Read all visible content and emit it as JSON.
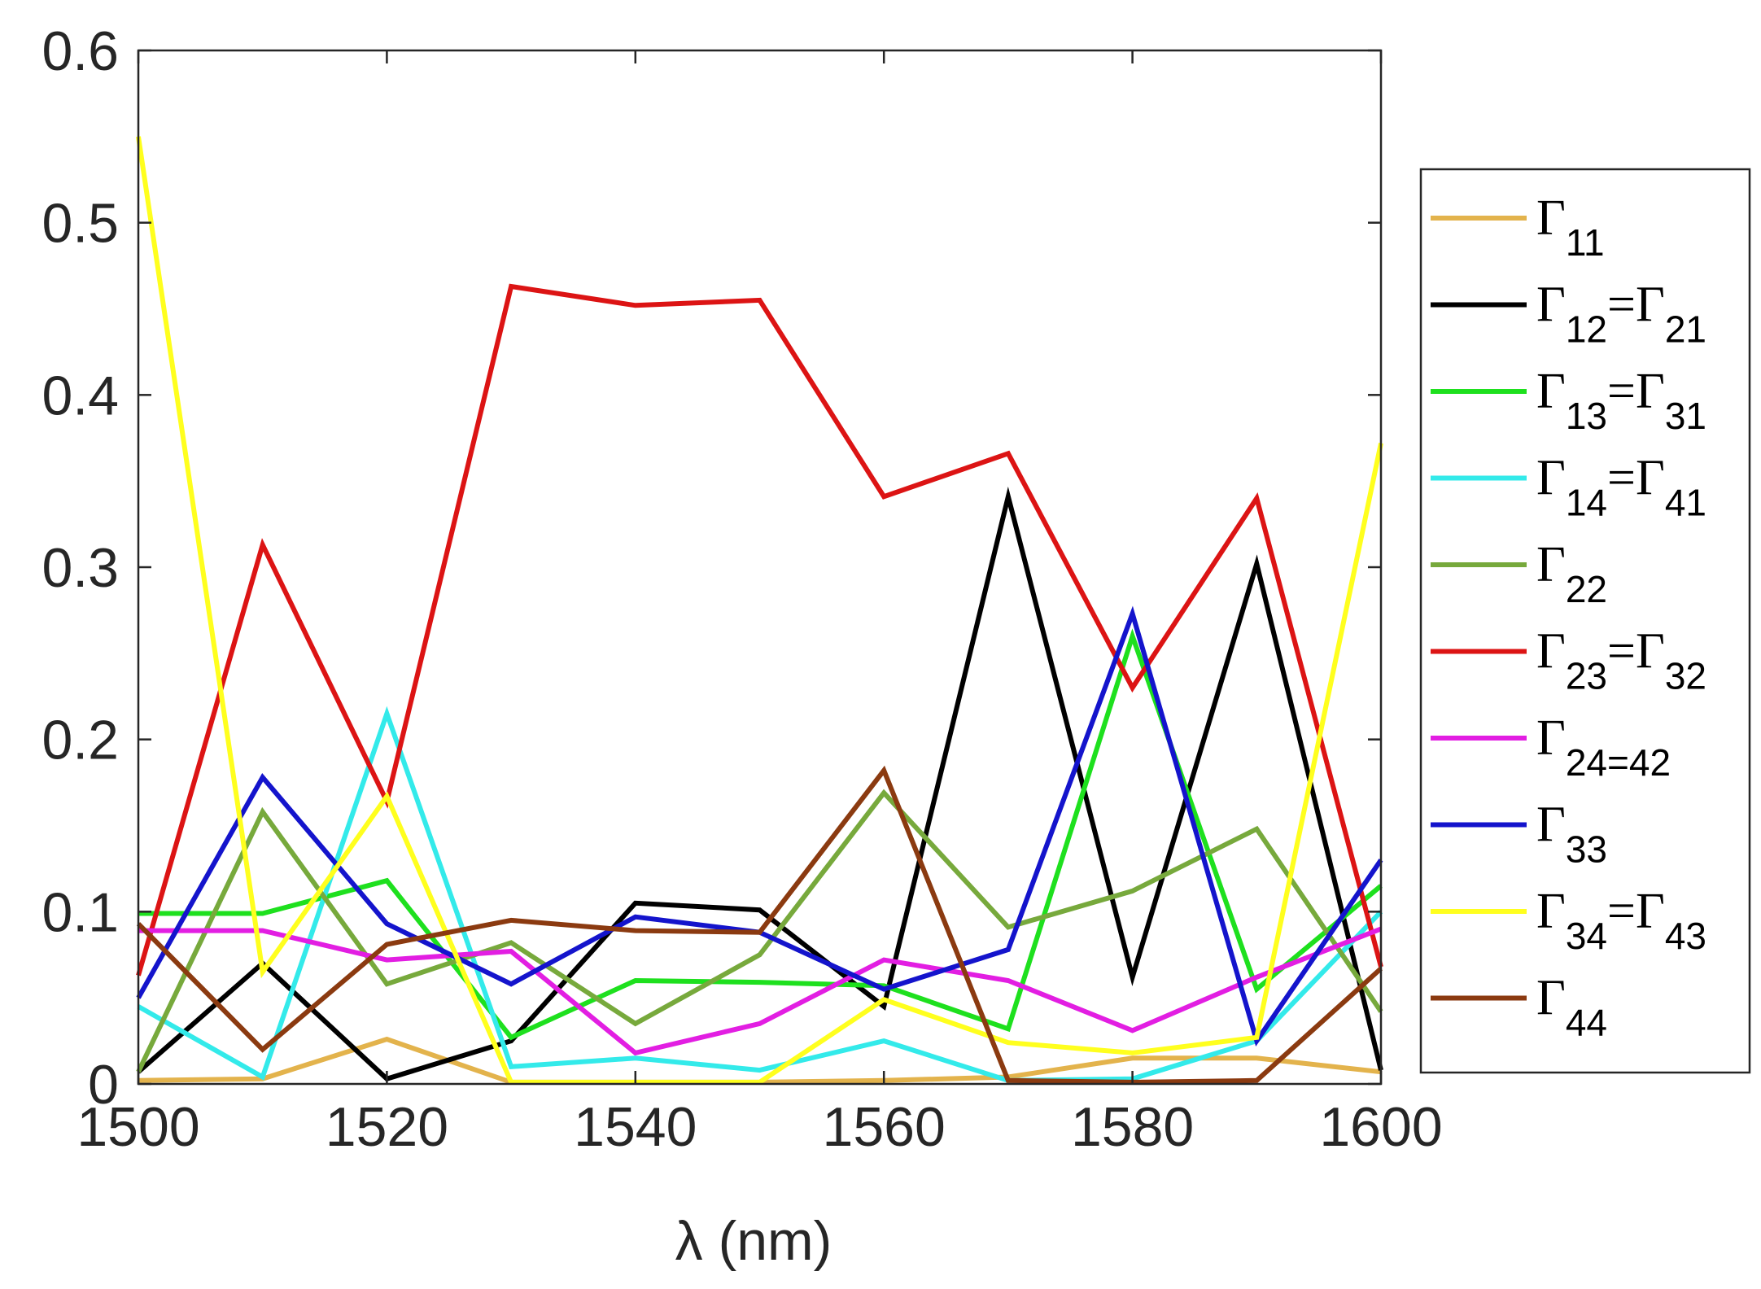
{
  "chart_data": {
    "type": "line",
    "title": "",
    "xlabel": "λ (nm)",
    "ylabel": "",
    "xlim": [
      1500,
      1600
    ],
    "ylim": [
      0,
      0.6
    ],
    "grid": false,
    "legend_position": "outside-right",
    "x": [
      1500,
      1510,
      1520,
      1530,
      1540,
      1550,
      1560,
      1570,
      1580,
      1590,
      1600
    ],
    "x_ticks": [
      1500,
      1520,
      1540,
      1560,
      1580,
      1600
    ],
    "x_tick_labels": [
      "1500",
      "1520",
      "1540",
      "1560",
      "1580",
      "1600"
    ],
    "y_ticks": [
      0,
      0.1,
      0.2,
      0.3,
      0.4,
      0.5,
      0.6
    ],
    "y_tick_labels": [
      "0",
      "0.1",
      "0.2",
      "0.3",
      "0.4",
      "0.5",
      "0.6"
    ],
    "series": [
      {
        "name": "Γ11",
        "legend": [
          {
            "t": "Γ"
          },
          {
            "t": "11",
            "sub": true
          }
        ],
        "color": "#e3b34c",
        "values": [
          0.002,
          0.003,
          0.026,
          0.001,
          0.001,
          0.001,
          0.002,
          0.004,
          0.015,
          0.015,
          0.007
        ]
      },
      {
        "name": "Γ12=Γ21",
        "legend": [
          {
            "t": "Γ"
          },
          {
            "t": "12",
            "sub": true
          },
          {
            "t": "=Γ"
          },
          {
            "t": "21",
            "sub": true
          }
        ],
        "color": "#000000",
        "values": [
          0.007,
          0.07,
          0.003,
          0.025,
          0.105,
          0.101,
          0.045,
          0.341,
          0.062,
          0.302,
          0.008
        ]
      },
      {
        "name": "Γ13=Γ31",
        "legend": [
          {
            "t": "Γ"
          },
          {
            "t": "13",
            "sub": true
          },
          {
            "t": "=Γ"
          },
          {
            "t": "31",
            "sub": true
          }
        ],
        "color": "#1ee01e",
        "values": [
          0.099,
          0.099,
          0.118,
          0.027,
          0.06,
          0.059,
          0.057,
          0.032,
          0.26,
          0.055,
          0.115
        ]
      },
      {
        "name": "Γ14=Γ41",
        "legend": [
          {
            "t": "Γ"
          },
          {
            "t": "14",
            "sub": true
          },
          {
            "t": "=Γ"
          },
          {
            "t": "41",
            "sub": true
          }
        ],
        "color": "#33eaea",
        "values": [
          0.045,
          0.004,
          0.215,
          0.01,
          0.015,
          0.008,
          0.025,
          0.002,
          0.003,
          0.025,
          0.1
        ]
      },
      {
        "name": "Γ22",
        "legend": [
          {
            "t": "Γ"
          },
          {
            "t": "22",
            "sub": true
          }
        ],
        "color": "#77a93c",
        "values": [
          0.007,
          0.158,
          0.058,
          0.082,
          0.035,
          0.075,
          0.169,
          0.091,
          0.112,
          0.148,
          0.042
        ]
      },
      {
        "name": "Γ23=Γ32",
        "legend": [
          {
            "t": "Γ"
          },
          {
            "t": "23",
            "sub": true
          },
          {
            "t": "=Γ"
          },
          {
            "t": "32",
            "sub": true
          }
        ],
        "color": "#dc1414",
        "values": [
          0.063,
          0.313,
          0.164,
          0.463,
          0.452,
          0.455,
          0.341,
          0.366,
          0.23,
          0.34,
          0.068
        ]
      },
      {
        "name": "Γ24=42",
        "legend": [
          {
            "t": "Γ"
          },
          {
            "t": "24=42",
            "sub": true
          }
        ],
        "color": "#e21ee2",
        "values": [
          0.089,
          0.089,
          0.072,
          0.077,
          0.018,
          0.035,
          0.072,
          0.06,
          0.031,
          0.062,
          0.09
        ]
      },
      {
        "name": "Γ33",
        "legend": [
          {
            "t": "Γ"
          },
          {
            "t": "33",
            "sub": true
          }
        ],
        "color": "#1414cc",
        "values": [
          0.05,
          0.178,
          0.093,
          0.058,
          0.097,
          0.088,
          0.055,
          0.078,
          0.273,
          0.025,
          0.13
        ]
      },
      {
        "name": "Γ34=Γ43",
        "legend": [
          {
            "t": "Γ"
          },
          {
            "t": "34",
            "sub": true
          },
          {
            "t": "=Γ"
          },
          {
            "t": "43",
            "sub": true
          }
        ],
        "color": "#ffff1e",
        "values": [
          0.55,
          0.065,
          0.167,
          0.001,
          0.001,
          0.001,
          0.049,
          0.024,
          0.018,
          0.027,
          0.372
        ]
      },
      {
        "name": "Γ44",
        "legend": [
          {
            "t": "Γ"
          },
          {
            "t": "44",
            "sub": true
          }
        ],
        "color": "#8b3a10",
        "values": [
          0.093,
          0.02,
          0.081,
          0.095,
          0.089,
          0.088,
          0.182,
          0.002,
          0.001,
          0.002,
          0.067
        ]
      }
    ]
  }
}
